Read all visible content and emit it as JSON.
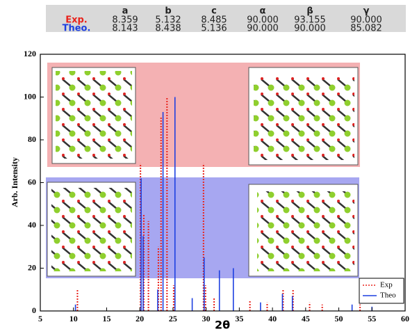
{
  "table": {
    "header": [
      "a",
      "b",
      "c",
      "α",
      "β",
      "γ"
    ],
    "rows": [
      [
        "Exp.",
        "8.359",
        "5.132",
        "8.485",
        "90.000",
        "93.155",
        "90.000"
      ],
      [
        "Theo.",
        "8.143",
        "8.438",
        "5.136",
        "90.000",
        "90.000",
        "85.082"
      ]
    ]
  },
  "chart_data": {
    "type": "stem",
    "xlabel": "2θ",
    "ylabel": "Arb. Intensity",
    "xlim": [
      5,
      60
    ],
    "xticks": [
      5,
      10,
      15,
      20,
      25,
      30,
      35,
      40,
      45,
      50,
      55,
      60
    ],
    "ylim": [
      0,
      120
    ],
    "yticks": [
      0,
      20,
      40,
      60,
      80,
      100,
      120
    ],
    "legend": "lower right",
    "series": [
      {
        "name": "Exp",
        "color": "#e8231c",
        "x": [
          10.6,
          20.1,
          20.6,
          21.3,
          22.8,
          23.2,
          24.1,
          25.1,
          29.6,
          29.9,
          31.2,
          36.6,
          39.2,
          41.6,
          43.1,
          45.6,
          47.5,
          53.2
        ],
        "values": [
          10,
          69,
          45,
          42,
          30,
          91,
          100,
          12,
          69,
          12,
          6,
          5,
          4,
          10,
          10,
          4,
          3,
          3
        ]
      },
      {
        "name": "Theo",
        "color": "#1c3fe0",
        "x": [
          10.3,
          20.2,
          20.5,
          22.7,
          23.5,
          25.3,
          27.9,
          29.7,
          32.0,
          34.1,
          38.2,
          41.5,
          43.0,
          52.0,
          55.0
        ],
        "values": [
          3,
          62,
          35,
          10,
          93,
          100,
          6,
          25,
          19,
          20,
          4,
          8,
          7,
          3,
          2
        ]
      }
    ]
  }
}
